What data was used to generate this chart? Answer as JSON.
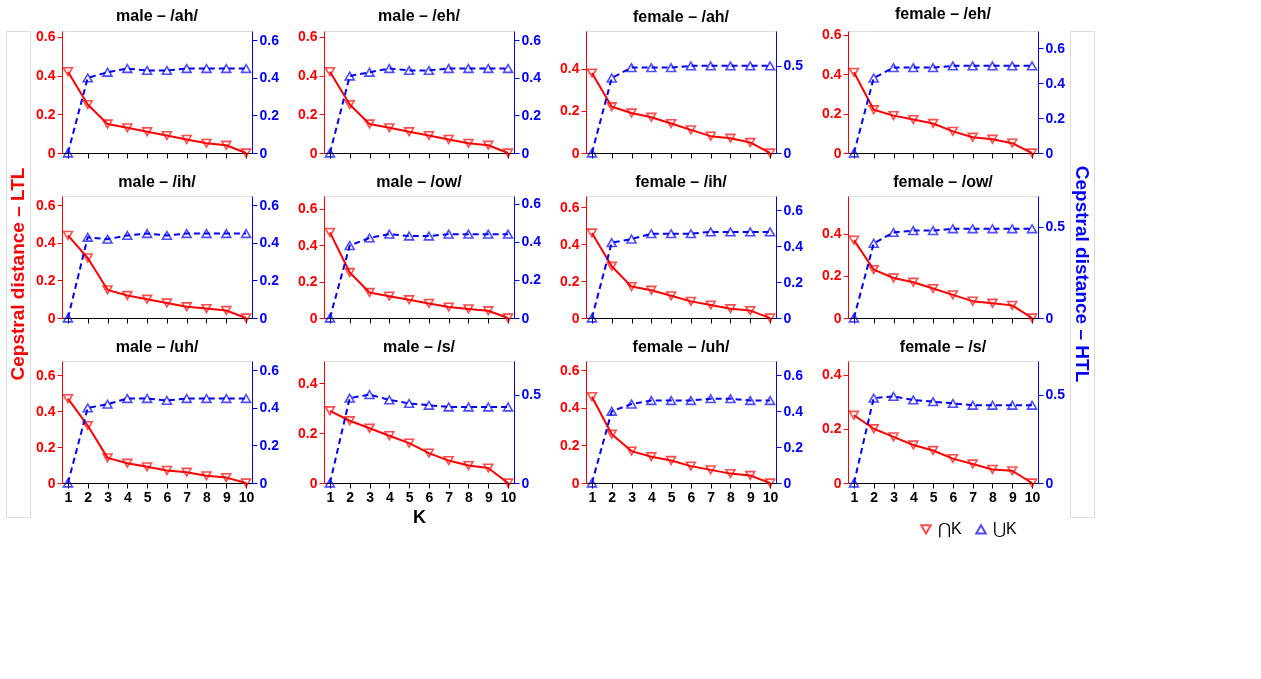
{
  "chart_data": [
    {
      "type": "line",
      "title": "male – /ah/",
      "x": [
        1,
        2,
        3,
        4,
        5,
        6,
        7,
        8,
        9,
        10
      ],
      "xlim": [
        0.7,
        10.3
      ],
      "xticks": [
        1,
        2,
        3,
        4,
        5,
        6,
        7,
        8,
        9,
        10
      ],
      "ylim": [
        0,
        0.63
      ],
      "yticks": [
        0,
        0.2,
        0.4,
        0.6
      ],
      "y2lim": [
        0,
        0.65
      ],
      "y2ticks": [
        0,
        0.2,
        0.4,
        0.6
      ],
      "tick_labels": "y",
      "series": [
        {
          "color": "#ff0000",
          "marker": "triangle-down",
          "line_style": "solid",
          "values": [
            0.42,
            0.25,
            0.15,
            0.13,
            0.11,
            0.09,
            0.07,
            0.05,
            0.04,
            0
          ]
        },
        {
          "color": "#0000ff",
          "marker": "triangle",
          "line_style": "dashed",
          "axis": "y2",
          "values": [
            0,
            0.4,
            0.43,
            0.45,
            0.44,
            0.44,
            0.45,
            0.45,
            0.45,
            0.45
          ]
        }
      ]
    },
    {
      "type": "line",
      "title": "male – /eh/",
      "x": [
        1,
        2,
        3,
        4,
        5,
        6,
        7,
        8,
        9,
        10
      ],
      "xlim": [
        0.7,
        10.3
      ],
      "xticks": [
        1,
        2,
        3,
        4,
        5,
        6,
        7,
        8,
        9,
        10
      ],
      "ylim": [
        0,
        0.63
      ],
      "yticks": [
        0,
        0.2,
        0.4,
        0.6
      ],
      "y2lim": [
        0,
        0.65
      ],
      "y2ticks": [
        0,
        0.2,
        0.4,
        0.6
      ],
      "tick_labels": "y",
      "series": [
        {
          "color": "#ff0000",
          "marker": "triangle-down",
          "line_style": "solid",
          "values": [
            0.42,
            0.25,
            0.15,
            0.13,
            0.11,
            0.09,
            0.07,
            0.05,
            0.04,
            0
          ]
        },
        {
          "color": "#0000ff",
          "marker": "triangle",
          "line_style": "dashed",
          "axis": "y2",
          "values": [
            0,
            0.41,
            0.43,
            0.45,
            0.44,
            0.44,
            0.45,
            0.45,
            0.45,
            0.45
          ]
        }
      ]
    },
    {
      "type": "line",
      "title": "female – /ah/",
      "x": [
        1,
        2,
        3,
        4,
        5,
        6,
        7,
        8,
        9,
        10
      ],
      "xlim": [
        0.7,
        10.3
      ],
      "xticks": [
        1,
        2,
        3,
        4,
        5,
        6,
        7,
        8,
        9,
        10
      ],
      "ylim": [
        0,
        0.58
      ],
      "yticks": [
        0,
        0.2,
        0.4
      ],
      "y2lim": [
        0,
        0.7
      ],
      "y2ticks": [
        0,
        0.5
      ],
      "tick_labels": "y",
      "series": [
        {
          "color": "#ff0000",
          "marker": "triangle-down",
          "line_style": "solid",
          "values": [
            0.38,
            0.22,
            0.19,
            0.17,
            0.14,
            0.11,
            0.08,
            0.07,
            0.05,
            0
          ]
        },
        {
          "color": "#0000ff",
          "marker": "triangle",
          "line_style": "dashed",
          "axis": "y2",
          "values": [
            0,
            0.43,
            0.49,
            0.49,
            0.49,
            0.5,
            0.5,
            0.5,
            0.5,
            0.5
          ]
        }
      ]
    },
    {
      "type": "line",
      "title": "female – /eh/",
      "x": [
        1,
        2,
        3,
        4,
        5,
        6,
        7,
        8,
        9,
        10
      ],
      "xlim": [
        0.7,
        10.3
      ],
      "xticks": [
        1,
        2,
        3,
        4,
        5,
        6,
        7,
        8,
        9,
        10
      ],
      "ylim": [
        0,
        0.62
      ],
      "yticks": [
        0,
        0.2,
        0.4,
        0.6
      ],
      "y2lim": [
        0,
        0.7
      ],
      "y2ticks": [
        0,
        0.2,
        0.4,
        0.6
      ],
      "tick_labels": "y",
      "series": [
        {
          "color": "#ff0000",
          "marker": "triangle-down",
          "line_style": "solid",
          "values": [
            0.41,
            0.22,
            0.19,
            0.17,
            0.15,
            0.11,
            0.08,
            0.07,
            0.05,
            0
          ]
        },
        {
          "color": "#0000ff",
          "marker": "triangle",
          "line_style": "dashed",
          "axis": "y2",
          "values": [
            0,
            0.43,
            0.49,
            0.49,
            0.49,
            0.5,
            0.5,
            0.5,
            0.5,
            0.5
          ]
        }
      ]
    },
    {
      "type": "line",
      "title": "male – /ih/",
      "ylabel": "Cepstral distance – LTL",
      "x": [
        1,
        2,
        3,
        4,
        5,
        6,
        7,
        8,
        9,
        10
      ],
      "xlim": [
        0.7,
        10.3
      ],
      "xticks": [
        1,
        2,
        3,
        4,
        5,
        6,
        7,
        8,
        9,
        10
      ],
      "ylim": [
        0,
        0.65
      ],
      "yticks": [
        0,
        0.2,
        0.4,
        0.6
      ],
      "y2lim": [
        0,
        0.65
      ],
      "y2ticks": [
        0,
        0.2,
        0.4,
        0.6
      ],
      "tick_labels": "y",
      "series": [
        {
          "color": "#ff0000",
          "marker": "triangle-down",
          "line_style": "solid",
          "values": [
            0.44,
            0.32,
            0.15,
            0.12,
            0.1,
            0.08,
            0.06,
            0.05,
            0.04,
            0
          ]
        },
        {
          "color": "#0000ff",
          "marker": "triangle",
          "line_style": "dashed",
          "axis": "y2",
          "values": [
            0,
            0.43,
            0.42,
            0.44,
            0.45,
            0.44,
            0.45,
            0.45,
            0.45,
            0.45
          ]
        }
      ]
    },
    {
      "type": "line",
      "title": "male – /ow/",
      "x": [
        1,
        2,
        3,
        4,
        5,
        6,
        7,
        8,
        9,
        10
      ],
      "xlim": [
        0.7,
        10.3
      ],
      "xticks": [
        1,
        2,
        3,
        4,
        5,
        6,
        7,
        8,
        9,
        10
      ],
      "ylim": [
        0,
        0.67
      ],
      "yticks": [
        0,
        0.2,
        0.4,
        0.6
      ],
      "y2lim": [
        0,
        0.64
      ],
      "y2ticks": [
        0,
        0.2,
        0.4,
        0.6
      ],
      "tick_labels": "y",
      "series": [
        {
          "color": "#ff0000",
          "marker": "triangle-down",
          "line_style": "solid",
          "values": [
            0.47,
            0.25,
            0.14,
            0.12,
            0.1,
            0.08,
            0.06,
            0.05,
            0.04,
            0
          ]
        },
        {
          "color": "#0000ff",
          "marker": "triangle",
          "line_style": "dashed",
          "axis": "y2",
          "values": [
            0,
            0.38,
            0.42,
            0.44,
            0.43,
            0.43,
            0.44,
            0.44,
            0.44,
            0.44
          ]
        }
      ]
    },
    {
      "type": "line",
      "title": "female – /ih/",
      "x": [
        1,
        2,
        3,
        4,
        5,
        6,
        7,
        8,
        9,
        10
      ],
      "xlim": [
        0.7,
        10.3
      ],
      "xticks": [
        1,
        2,
        3,
        4,
        5,
        6,
        7,
        8,
        9,
        10
      ],
      "ylim": [
        0,
        0.66
      ],
      "yticks": [
        0,
        0.2,
        0.4,
        0.6
      ],
      "y2lim": [
        0,
        0.68
      ],
      "y2ticks": [
        0,
        0.2,
        0.4,
        0.6
      ],
      "tick_labels": "y",
      "series": [
        {
          "color": "#ff0000",
          "marker": "triangle-down",
          "line_style": "solid",
          "values": [
            0.46,
            0.28,
            0.17,
            0.15,
            0.12,
            0.09,
            0.07,
            0.05,
            0.04,
            0
          ]
        },
        {
          "color": "#0000ff",
          "marker": "triangle",
          "line_style": "dashed",
          "axis": "y2",
          "values": [
            0,
            0.42,
            0.44,
            0.47,
            0.47,
            0.47,
            0.48,
            0.48,
            0.48,
            0.48
          ]
        }
      ]
    },
    {
      "type": "line",
      "title": "female – /ow/",
      "y2label": "Cepstral distance – HTL",
      "x": [
        1,
        2,
        3,
        4,
        5,
        6,
        7,
        8,
        9,
        10
      ],
      "xlim": [
        0.7,
        10.3
      ],
      "xticks": [
        1,
        2,
        3,
        4,
        5,
        6,
        7,
        8,
        9,
        10
      ],
      "ylim": [
        0,
        0.58
      ],
      "yticks": [
        0,
        0.2,
        0.4
      ],
      "y2lim": [
        0,
        0.67
      ],
      "y2ticks": [
        0,
        0.5
      ],
      "tick_labels": "y",
      "series": [
        {
          "color": "#ff0000",
          "marker": "triangle-down",
          "line_style": "solid",
          "values": [
            0.37,
            0.23,
            0.19,
            0.17,
            0.14,
            0.11,
            0.08,
            0.07,
            0.06,
            0
          ]
        },
        {
          "color": "#0000ff",
          "marker": "triangle",
          "line_style": "dashed",
          "axis": "y2",
          "values": [
            0,
            0.41,
            0.47,
            0.48,
            0.48,
            0.49,
            0.49,
            0.49,
            0.49,
            0.49
          ]
        }
      ]
    },
    {
      "type": "line",
      "title": "male – /uh/",
      "x": [
        1,
        2,
        3,
        4,
        5,
        6,
        7,
        8,
        9,
        10
      ],
      "xlim": [
        0.7,
        10.3
      ],
      "xticks": [
        1,
        2,
        3,
        4,
        5,
        6,
        7,
        8,
        9,
        10
      ],
      "ylim": [
        0,
        0.68
      ],
      "yticks": [
        0,
        0.2,
        0.4,
        0.6
      ],
      "y2lim": [
        0,
        0.65
      ],
      "y2ticks": [
        0,
        0.2,
        0.4,
        0.6
      ],
      "series": [
        {
          "color": "#ff0000",
          "marker": "triangle-down",
          "line_style": "solid",
          "values": [
            0.47,
            0.32,
            0.14,
            0.11,
            0.09,
            0.07,
            0.06,
            0.04,
            0.03,
            0
          ]
        },
        {
          "color": "#0000ff",
          "marker": "triangle",
          "line_style": "dashed",
          "axis": "y2",
          "values": [
            0,
            0.4,
            0.42,
            0.45,
            0.45,
            0.44,
            0.45,
            0.45,
            0.45,
            0.45
          ]
        }
      ]
    },
    {
      "type": "line",
      "title": "male – /s/",
      "xlabel": "K",
      "x": [
        1,
        2,
        3,
        4,
        5,
        6,
        7,
        8,
        9,
        10
      ],
      "xlim": [
        0.7,
        10.3
      ],
      "xticks": [
        1,
        2,
        3,
        4,
        5,
        6,
        7,
        8,
        9,
        10
      ],
      "ylim": [
        0,
        0.49
      ],
      "yticks": [
        0,
        0.2,
        0.4
      ],
      "y2lim": [
        0,
        0.69
      ],
      "y2ticks": [
        0,
        0.5
      ],
      "series": [
        {
          "color": "#ff0000",
          "marker": "triangle-down",
          "line_style": "solid",
          "values": [
            0.29,
            0.25,
            0.22,
            0.19,
            0.16,
            0.12,
            0.09,
            0.07,
            0.06,
            0
          ]
        },
        {
          "color": "#0000ff",
          "marker": "triangle",
          "line_style": "dashed",
          "axis": "y2",
          "values": [
            0,
            0.48,
            0.5,
            0.47,
            0.45,
            0.44,
            0.43,
            0.43,
            0.43,
            0.43
          ]
        }
      ]
    },
    {
      "type": "line",
      "title": "female – /uh/",
      "x": [
        1,
        2,
        3,
        4,
        5,
        6,
        7,
        8,
        9,
        10
      ],
      "xlim": [
        0.7,
        10.3
      ],
      "xticks": [
        1,
        2,
        3,
        4,
        5,
        6,
        7,
        8,
        9,
        10
      ],
      "ylim": [
        0,
        0.65
      ],
      "yticks": [
        0,
        0.2,
        0.4,
        0.6
      ],
      "y2lim": [
        0,
        0.68
      ],
      "y2ticks": [
        0,
        0.2,
        0.4,
        0.6
      ],
      "series": [
        {
          "color": "#ff0000",
          "marker": "triangle-down",
          "line_style": "solid",
          "values": [
            0.46,
            0.26,
            0.17,
            0.14,
            0.12,
            0.09,
            0.07,
            0.05,
            0.04,
            0
          ]
        },
        {
          "color": "#0000ff",
          "marker": "triangle",
          "line_style": "dashed",
          "axis": "y2",
          "values": [
            0,
            0.4,
            0.44,
            0.46,
            0.46,
            0.46,
            0.47,
            0.47,
            0.46,
            0.46
          ]
        }
      ]
    },
    {
      "type": "line",
      "title": "female – /s/",
      "legend": "bottom right",
      "x": [
        1,
        2,
        3,
        4,
        5,
        6,
        7,
        8,
        9,
        10
      ],
      "xlim": [
        0.7,
        10.3
      ],
      "xticks": [
        1,
        2,
        3,
        4,
        5,
        6,
        7,
        8,
        9,
        10
      ],
      "ylim": [
        0,
        0.45
      ],
      "yticks": [
        0,
        0.2,
        0.4
      ],
      "y2lim": [
        0,
        0.69
      ],
      "y2ticks": [
        0,
        0.5
      ],
      "series": [
        {
          "name": "⋂K",
          "color": "#ff0000",
          "marker": "triangle-down",
          "line_style": "solid",
          "values": [
            0.25,
            0.2,
            0.17,
            0.14,
            0.12,
            0.09,
            0.07,
            0.05,
            0.045,
            0
          ]
        },
        {
          "name": "⋃K",
          "color": "#0000ff",
          "marker": "triangle",
          "line_style": "dashed",
          "axis": "y2",
          "values": [
            0,
            0.48,
            0.49,
            0.47,
            0.46,
            0.45,
            0.44,
            0.44,
            0.44,
            0.44
          ]
        }
      ]
    }
  ]
}
